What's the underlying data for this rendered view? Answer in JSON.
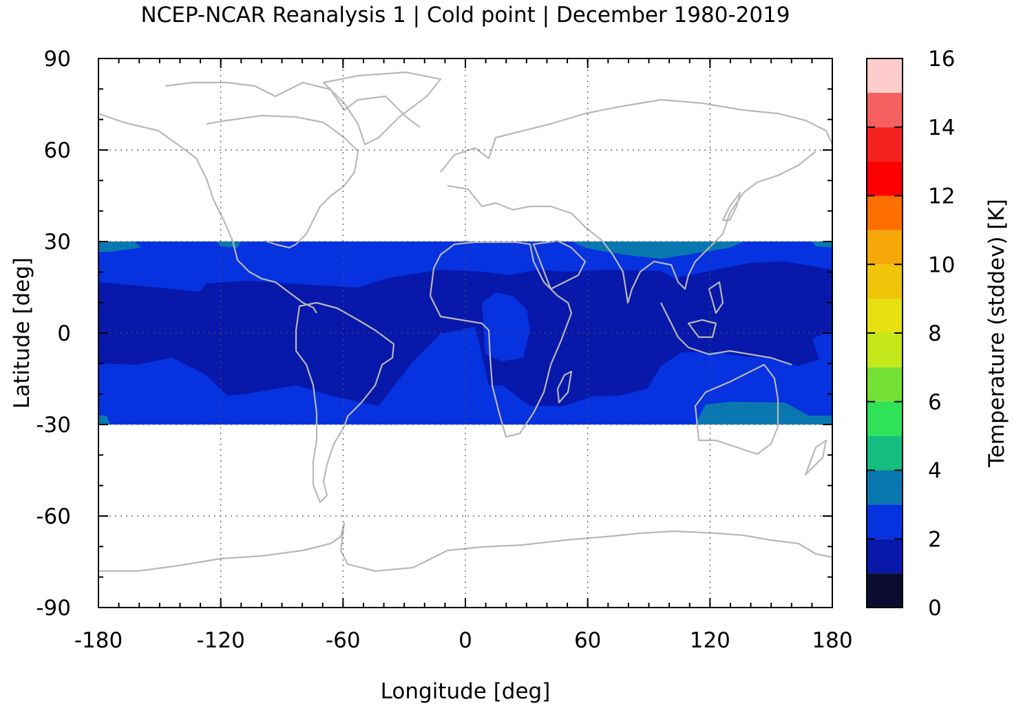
{
  "chart_data": {
    "type": "heatmap",
    "title": "NCEP-NCAR Reanalysis 1 | Cold point | December 1980-2019",
    "xlabel": "Longitude [deg]",
    "ylabel": "Latitude [deg]",
    "xlim": [
      -180,
      180
    ],
    "ylim": [
      -90,
      90
    ],
    "x_ticks": [
      "-180",
      "-120",
      "-60",
      "0",
      "60",
      "120",
      "180"
    ],
    "y_ticks": [
      "90",
      "60",
      "30",
      "0",
      "-30",
      "-60",
      "-90"
    ],
    "grid": true,
    "colorbar": {
      "label": "Temperature (stddev) [K]",
      "range": [
        0,
        16
      ],
      "ticks": [
        "0",
        "2",
        "4",
        "6",
        "8",
        "10",
        "12",
        "14",
        "16"
      ],
      "colors": [
        "#0c0c30",
        "#0718aa",
        "#0632e0",
        "#0a78b0",
        "#14be80",
        "#30e258",
        "#74e034",
        "#c4e81a",
        "#e6e010",
        "#f0c408",
        "#f5a808",
        "#ff6e00",
        "#ff0000",
        "#f52020",
        "#f56060",
        "#ffcccc"
      ]
    },
    "data_region": {
      "lon_range": [
        -180,
        180
      ],
      "lat_range": [
        -30,
        30
      ]
    },
    "bands": [
      {
        "name": "2-3 K",
        "color": "#0632e0",
        "region": "background of tropical band, e.g. 30N-20N and 10S-30S, central Africa"
      },
      {
        "name": "1-2 K",
        "color": "#0718aa",
        "region": "core equatorial belt 20N-10S"
      },
      {
        "name": "3-4 K",
        "color": "#0a78b0",
        "region": "edges near 30N over Pacific/India and 25-30S over Australia"
      }
    ]
  }
}
